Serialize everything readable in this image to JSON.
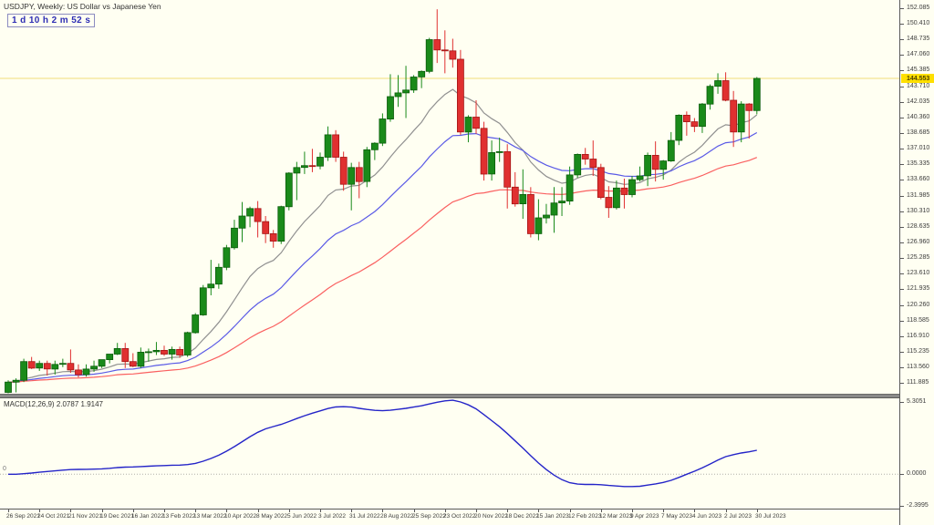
{
  "window": {
    "bg": "#fffff2"
  },
  "header": {
    "symbol_label": "USDJPY, Weekly: US Dollar vs Japanese Yen",
    "countdown": "1 d 10 h 2 m 52 s"
  },
  "chart_data": {
    "type": "candlestick",
    "symbol": "USDJPY",
    "timeframe": "Weekly",
    "title": "USDJPY, Weekly: US Dollar vs Japanese Yen",
    "legend_position": "top-left",
    "grid": false,
    "price_axis": {
      "labels": [
        "152.085",
        "150.410",
        "148.735",
        "147.060",
        "145.385",
        "143.710",
        "142.035",
        "140.360",
        "138.685",
        "137.010",
        "135.335",
        "133.660",
        "131.985",
        "130.310",
        "128.635",
        "126.960",
        "125.285",
        "123.610",
        "121.935",
        "120.260",
        "118.585",
        "116.910",
        "115.235",
        "113.560",
        "111.885"
      ],
      "view_max": 152.95,
      "view_min": 110.75,
      "current_price": "144.553",
      "current_price_value": 144.553
    },
    "time_axis": {
      "labels": [
        "26 Sep 2021",
        "24 Oct 2021",
        "21 Nov 2021",
        "19 Dec 2021",
        "16 Jan 2022",
        "13 Feb 2022",
        "13 Mar 2022",
        "10 Apr 2022",
        "8 May 2022",
        "5 Jun 2022",
        "3 Jul 2022",
        "31 Jul 2022",
        "28 Aug 2022",
        "25 Sep 2022",
        "23 Oct 2022",
        "20 Nov 2022",
        "18 Dec 2022",
        "15 Jan 2023",
        "12 Feb 2023",
        "12 Mar 2023",
        "9 Apr 2023",
        "7 May 2023",
        "4 Jun 2023",
        "2 Jul 2023",
        "30 Jul 2023"
      ],
      "label_every_n_bars": 4
    },
    "candles_ohlc": [
      [
        110.9,
        112.2,
        110.8,
        112.0
      ],
      [
        112.0,
        112.4,
        110.9,
        112.2
      ],
      [
        112.2,
        114.5,
        112.0,
        114.2
      ],
      [
        114.2,
        114.7,
        113.4,
        113.5
      ],
      [
        113.5,
        114.3,
        113.2,
        114.0
      ],
      [
        114.0,
        114.3,
        112.7,
        113.4
      ],
      [
        113.4,
        114.3,
        112.8,
        113.9
      ],
      [
        113.9,
        114.5,
        113.6,
        114.0
      ],
      [
        114.0,
        115.5,
        113.0,
        113.3
      ],
      [
        113.3,
        113.9,
        112.5,
        112.8
      ],
      [
        112.8,
        113.9,
        112.6,
        113.4
      ],
      [
        113.4,
        114.3,
        113.1,
        113.7
      ],
      [
        113.7,
        114.4,
        113.5,
        114.4
      ],
      [
        114.4,
        115.0,
        114.0,
        115.0
      ],
      [
        115.0,
        116.2,
        114.9,
        115.6
      ],
      [
        115.6,
        116.2,
        113.5,
        114.2
      ],
      [
        114.2,
        115.1,
        113.6,
        113.7
      ],
      [
        113.7,
        115.7,
        113.5,
        115.2
      ],
      [
        115.2,
        115.6,
        114.2,
        115.25
      ],
      [
        115.25,
        116.3,
        114.9,
        115.4
      ],
      [
        115.4,
        115.9,
        114.8,
        115.0
      ],
      [
        115.0,
        115.8,
        114.4,
        115.5
      ],
      [
        115.5,
        115.8,
        114.6,
        114.9
      ],
      [
        114.9,
        117.4,
        114.7,
        117.3
      ],
      [
        117.3,
        119.4,
        117.2,
        119.2
      ],
      [
        119.2,
        122.4,
        119.1,
        122.1
      ],
      [
        122.1,
        125.1,
        121.3,
        122.5
      ],
      [
        122.5,
        124.7,
        122.0,
        124.3
      ],
      [
        124.3,
        126.7,
        124.0,
        126.4
      ],
      [
        126.4,
        129.4,
        126.2,
        128.5
      ],
      [
        128.5,
        131.3,
        127.0,
        129.8
      ],
      [
        129.8,
        130.8,
        128.6,
        130.6
      ],
      [
        130.6,
        131.4,
        127.5,
        129.2
      ],
      [
        129.2,
        129.8,
        126.9,
        127.9
      ],
      [
        127.9,
        128.3,
        126.4,
        127.1
      ],
      [
        127.1,
        130.9,
        126.8,
        130.8
      ],
      [
        130.8,
        134.5,
        130.4,
        134.4
      ],
      [
        134.4,
        135.6,
        131.5,
        135.0
      ],
      [
        135.0,
        136.7,
        134.3,
        135.2
      ],
      [
        135.2,
        137.0,
        134.5,
        135.15
      ],
      [
        135.15,
        136.6,
        134.8,
        136.1
      ],
      [
        136.1,
        139.4,
        135.7,
        138.5
      ],
      [
        138.5,
        139.0,
        135.6,
        136.1
      ],
      [
        136.1,
        136.7,
        132.5,
        133.2
      ],
      [
        133.2,
        135.5,
        130.4,
        135.0
      ],
      [
        135.0,
        135.6,
        131.7,
        133.5
      ],
      [
        133.5,
        137.2,
        132.9,
        136.9
      ],
      [
        136.9,
        137.7,
        135.8,
        137.6
      ],
      [
        137.6,
        140.8,
        137.3,
        140.2
      ],
      [
        140.2,
        145.0,
        139.9,
        142.6
      ],
      [
        142.6,
        144.9,
        141.5,
        143.0
      ],
      [
        143.0,
        145.9,
        140.3,
        143.3
      ],
      [
        143.3,
        144.9,
        143.0,
        144.7
      ],
      [
        144.7,
        145.4,
        143.5,
        145.3
      ],
      [
        145.3,
        148.9,
        145.1,
        148.7
      ],
      [
        148.7,
        151.95,
        146.2,
        147.6
      ],
      [
        147.6,
        149.7,
        145.1,
        147.5
      ],
      [
        147.5,
        148.8,
        145.7,
        146.6
      ],
      [
        146.6,
        147.6,
        138.5,
        138.8
      ],
      [
        138.8,
        140.6,
        137.7,
        140.4
      ],
      [
        140.4,
        142.2,
        138.6,
        139.2
      ],
      [
        139.2,
        139.9,
        133.6,
        134.3
      ],
      [
        134.3,
        137.9,
        133.6,
        136.6
      ],
      [
        136.6,
        138.2,
        135.6,
        136.7
      ],
      [
        136.7,
        137.5,
        130.6,
        132.9
      ],
      [
        132.9,
        134.5,
        130.8,
        131.1
      ],
      [
        131.1,
        134.8,
        129.5,
        132.1
      ],
      [
        132.1,
        132.9,
        127.5,
        127.9
      ],
      [
        127.9,
        131.6,
        127.2,
        129.6
      ],
      [
        129.6,
        131.1,
        129.0,
        129.9
      ],
      [
        129.9,
        132.9,
        128.0,
        131.2
      ],
      [
        131.2,
        132.9,
        129.8,
        131.4
      ],
      [
        131.4,
        135.1,
        131.0,
        134.2
      ],
      [
        134.2,
        136.5,
        133.9,
        136.4
      ],
      [
        136.4,
        137.1,
        135.3,
        135.9
      ],
      [
        135.9,
        137.9,
        134.1,
        135.0
      ],
      [
        135.0,
        135.4,
        131.6,
        131.8
      ],
      [
        131.8,
        133.0,
        129.6,
        130.7
      ],
      [
        130.7,
        133.6,
        130.5,
        132.8
      ],
      [
        132.8,
        133.8,
        130.6,
        132.1
      ],
      [
        132.1,
        134.1,
        131.8,
        133.7
      ],
      [
        133.7,
        135.1,
        133.5,
        134.1
      ],
      [
        134.1,
        136.6,
        133.0,
        136.3
      ],
      [
        136.3,
        137.8,
        133.5,
        134.8
      ],
      [
        134.8,
        135.8,
        133.7,
        135.7
      ],
      [
        135.7,
        138.8,
        135.6,
        137.9
      ],
      [
        137.9,
        140.7,
        137.4,
        140.6
      ],
      [
        140.6,
        141.0,
        138.4,
        139.9
      ],
      [
        139.9,
        140.3,
        138.8,
        139.4
      ],
      [
        139.4,
        141.9,
        138.7,
        141.8
      ],
      [
        141.8,
        143.9,
        141.2,
        143.7
      ],
      [
        143.7,
        145.1,
        142.9,
        144.3
      ],
      [
        144.3,
        145.2,
        142.1,
        142.2
      ],
      [
        142.2,
        143.2,
        137.2,
        138.8
      ],
      [
        138.8,
        142.1,
        137.7,
        141.8
      ],
      [
        141.8,
        141.9,
        138.1,
        141.1
      ],
      [
        141.1,
        144.7,
        140.7,
        144.553
      ]
    ],
    "moving_averages": [
      {
        "name": "fast",
        "type": "ema",
        "period": 13,
        "color": "#909090"
      },
      {
        "name": "medium",
        "type": "ema",
        "period": 26,
        "color": "#5a5ae6"
      },
      {
        "name": "slow",
        "type": "ema",
        "period": 52,
        "color": "#fa6060"
      }
    ],
    "current_price_line": {
      "color": "#f2dd7a"
    },
    "macd": {
      "label": "MACD(12,26,9)",
      "main_value": "2.0787",
      "signal_value": "1.9147",
      "fast": 12,
      "slow": 26,
      "signal": 9,
      "scale_max": "5.3051",
      "scale_min": "-2.3995",
      "zero_label": "0.0000",
      "left_zero_label": "0",
      "line_color": "#2424c8"
    }
  },
  "colors": {
    "bull_body": "#1a8a1a",
    "bull_border": "#0a5c0a",
    "bear_body": "#e03030",
    "bear_border": "#a31515",
    "price_box_bg": "#ffdf00",
    "price_box_text": "#4a3f00",
    "axis_text": "#3c3c3c",
    "axis_line": "#5a5a5a",
    "macd_zero_line": "#b0b0a8"
  }
}
